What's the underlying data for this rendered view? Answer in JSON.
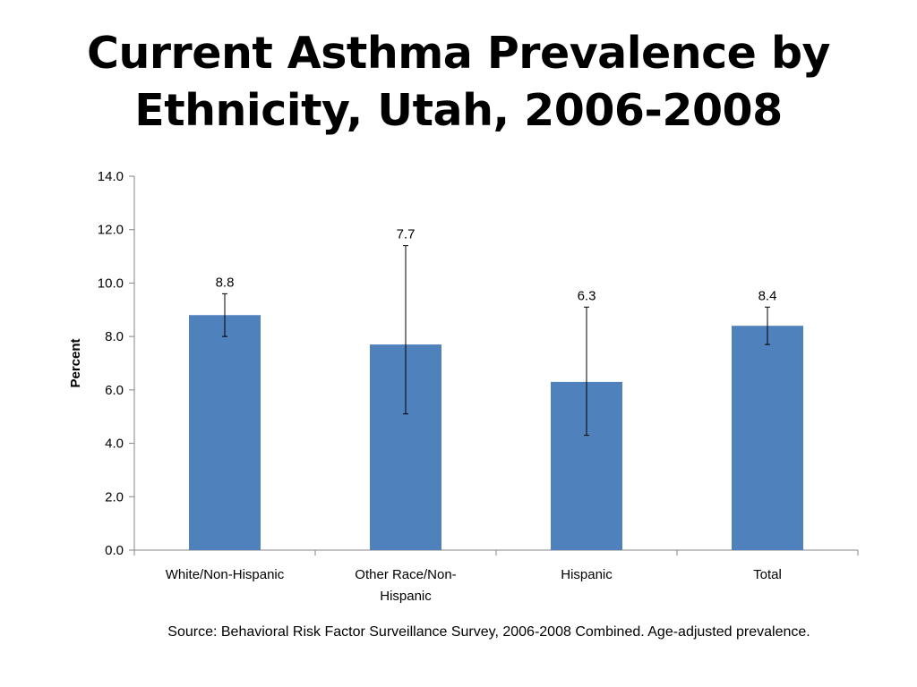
{
  "slide": {
    "title_line1": "Current Asthma Prevalence by",
    "title_line2": "Ethnicity, Utah, 2006-2008",
    "source": "Source: Behavioral Risk Factor Surveillance Survey, 2006-2008 Combined. Age-adjusted prevalence."
  },
  "chart_data": {
    "type": "bar",
    "title": "Current Asthma Prevalence by Ethnicity, Utah, 2006-2008",
    "ylabel": "Percent",
    "xlabel": "",
    "categories": [
      [
        "White/Non-Hispanic"
      ],
      [
        "Other Race/Non-",
        "Hispanic"
      ],
      [
        "Hispanic"
      ],
      [
        "Total"
      ]
    ],
    "values": [
      8.8,
      7.7,
      6.3,
      8.4
    ],
    "value_labels": [
      "8.8",
      "7.7",
      "6.3",
      "8.4"
    ],
    "error_bars": [
      {
        "low": 8.0,
        "high": 9.6
      },
      {
        "low": 5.1,
        "high": 11.4
      },
      {
        "low": 4.3,
        "high": 9.1
      },
      {
        "low": 7.7,
        "high": 9.1
      }
    ],
    "ylim": [
      0,
      14
    ],
    "yticks": [
      "0.0",
      "2.0",
      "4.0",
      "6.0",
      "8.0",
      "10.0",
      "12.0",
      "14.0"
    ],
    "ytick_values": [
      0,
      2,
      4,
      6,
      8,
      10,
      12,
      14
    ],
    "grid": false,
    "bar_color": "#4F81BD",
    "error_bar_color": "#000000",
    "axis_color": "#868686"
  }
}
